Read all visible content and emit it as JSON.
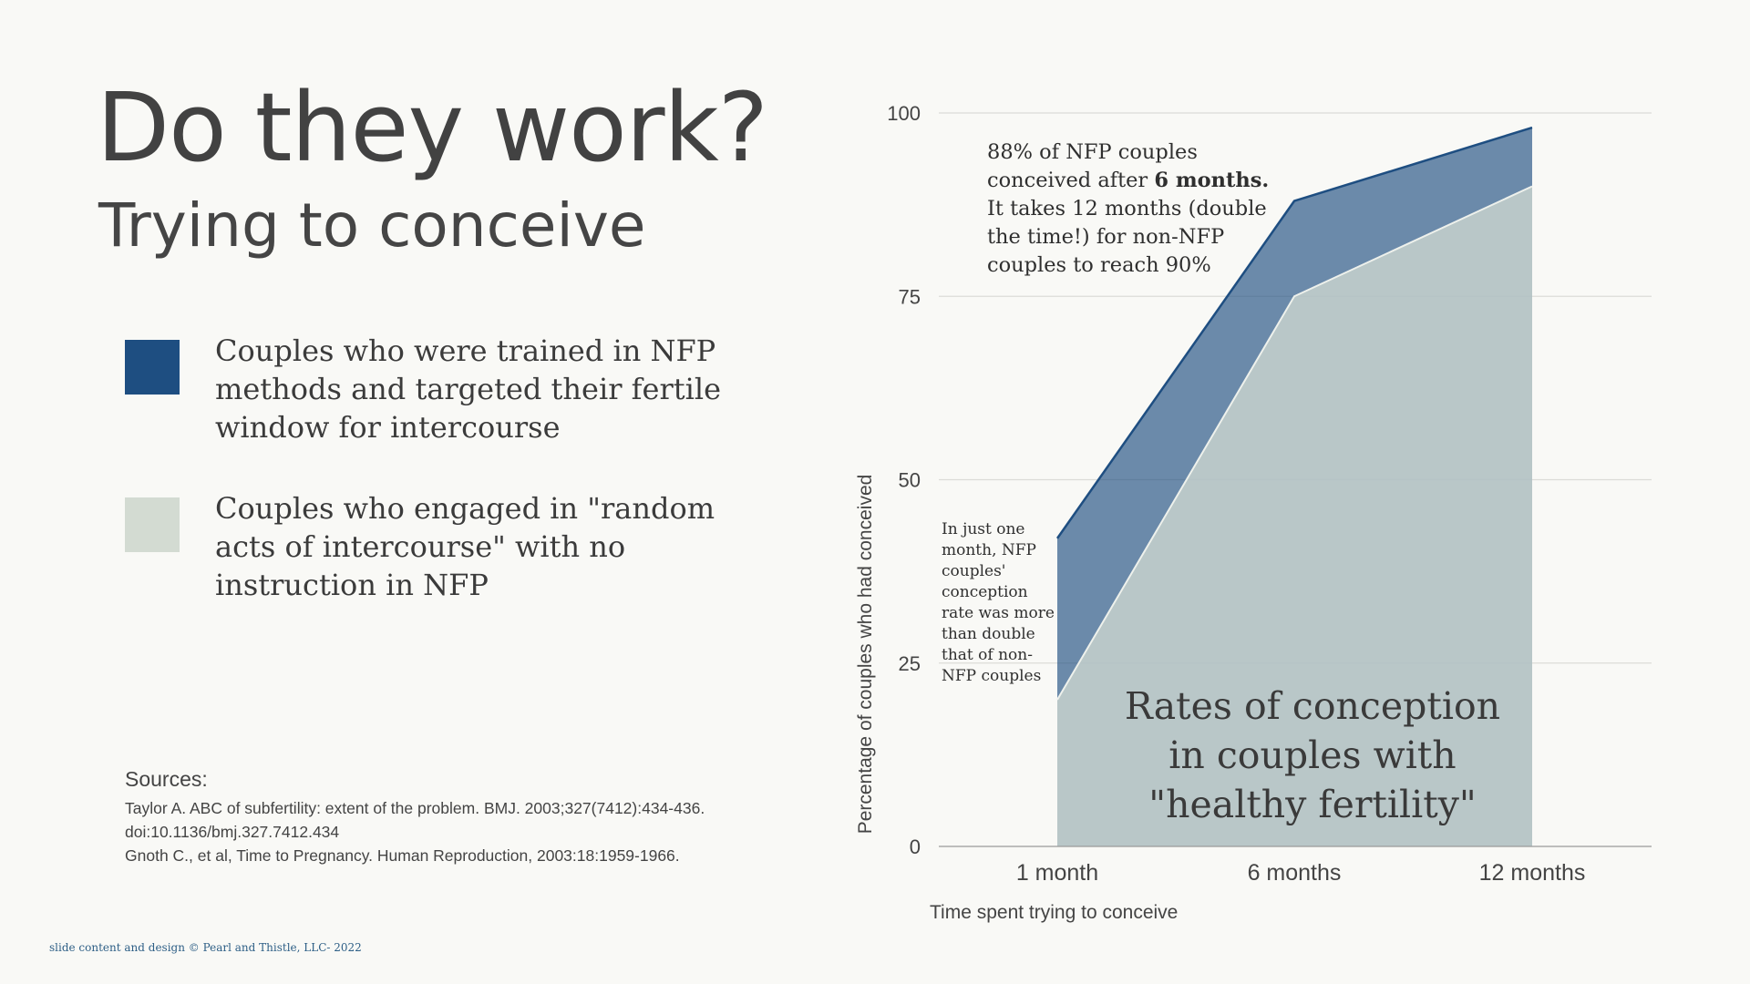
{
  "slide": {
    "title": "Do they work?",
    "subtitle": "Trying to conceive"
  },
  "legend": [
    {
      "label": "Couples who were trained in NFP methods and targeted their fertile window for intercourse",
      "color": "#1e4e81"
    },
    {
      "label": "Couples who engaged in \"random acts of intercourse\" with no instruction in NFP",
      "color": "#d3dbd2"
    }
  ],
  "sources": {
    "heading": "Sources:",
    "lines": [
      "Taylor A. ABC of subfertility: extent of the problem. BMJ. 2003;327(7412):434-436.",
      "doi:10.1136/bmj.327.7412.434",
      "Gnoth C., et al, Time to Pregnancy. Human Reproduction, 2003:18:1959-1966."
    ]
  },
  "copyright": "slide content and design © Pearl and Thistle, LLC- 2022",
  "annotations": {
    "top_line1": "88% of NFP couples",
    "top_line2_prefix": "conceived after ",
    "top_line2_bold": "6 months.",
    "top_line3": "It takes 12 months (double the time!) for non-NFP couples to reach 90%",
    "small": "In just one month, NFP couples' conception rate was more than double that of non-NFP couples",
    "big": "Rates of conception in couples with \"healthy fertility\""
  },
  "chart_data": {
    "type": "area",
    "categories": [
      "1 month",
      "6 months",
      "12 months"
    ],
    "series": [
      {
        "values": [
          42,
          88,
          98
        ],
        "color": "#1e4e81",
        "fill_opacity": 0.65
      },
      {
        "values": [
          20,
          75,
          90
        ],
        "color": "#d3dbd2",
        "fill_opacity": 0.75
      }
    ],
    "xlabel": "Time spent trying to conceive",
    "ylabel": "Percentage of couples who had conceived",
    "ylim": [
      0,
      100
    ],
    "yticks": [
      0,
      25,
      50,
      75,
      100
    ],
    "grid": true
  }
}
